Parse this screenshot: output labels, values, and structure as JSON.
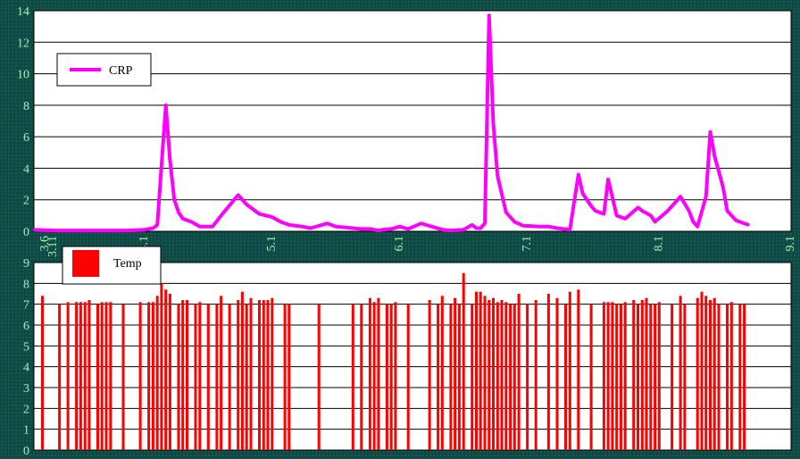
{
  "colors": {
    "background": "#0e4a43",
    "tick_text": "#a6f0b6",
    "crp_line": "#ff00ff",
    "temp_bar": "#ff0000",
    "plot_bg": "#ffffff",
    "grid": "#000000"
  },
  "chart_data": [
    {
      "type": "line",
      "title": "",
      "xlabel": "",
      "ylabel": "",
      "x_tick_labels": [
        "3.6",
        "3.11",
        "4.1",
        "5.1",
        "6.1",
        "7.1",
        "8.1",
        "9.1"
      ],
      "x_tick_days": [
        0,
        5,
        26,
        56,
        86,
        116,
        147,
        178
      ],
      "xlim": [
        0,
        178
      ],
      "ylim": [
        0,
        14
      ],
      "y_ticks": [
        0,
        2,
        4,
        6,
        8,
        10,
        12,
        14
      ],
      "grid": true,
      "legend": "top-left",
      "series": [
        {
          "name": "CRP",
          "color": "#ff00ff",
          "x": [
            0,
            5,
            10,
            16,
            22,
            26,
            28,
            29,
            30,
            31,
            32,
            33,
            34,
            35,
            37,
            39,
            40,
            42,
            44,
            48,
            50,
            53,
            56,
            58,
            60,
            63,
            65,
            69,
            71,
            75,
            77,
            79,
            80,
            81,
            82,
            84,
            86,
            88,
            91,
            96,
            98,
            101,
            103,
            104,
            105,
            106,
            107,
            108,
            109,
            111,
            113,
            115,
            119,
            121,
            122,
            123,
            126,
            128,
            129,
            131,
            132,
            134,
            135,
            137,
            139,
            142,
            143,
            145,
            146,
            149,
            152,
            154,
            155,
            156,
            158,
            159,
            160,
            162,
            163,
            165,
            167,
            168
          ],
          "values": [
            0.1,
            0.05,
            0.05,
            0.05,
            0.05,
            0.1,
            0.2,
            0.4,
            4.2,
            8.0,
            4.5,
            2.0,
            1.2,
            0.8,
            0.6,
            0.3,
            0.3,
            0.3,
            1.0,
            2.3,
            1.7,
            1.1,
            0.9,
            0.6,
            0.4,
            0.3,
            0.2,
            0.5,
            0.3,
            0.2,
            0.15,
            0.15,
            0.1,
            0.05,
            0.1,
            0.15,
            0.3,
            0.15,
            0.5,
            0.1,
            0.05,
            0.1,
            0.4,
            0.2,
            0.2,
            0.5,
            13.7,
            6.8,
            3.5,
            1.2,
            0.6,
            0.35,
            0.3,
            0.3,
            0.25,
            0.2,
            0.1,
            3.6,
            2.4,
            1.6,
            1.3,
            1.1,
            3.3,
            1.0,
            0.8,
            1.5,
            1.3,
            1.0,
            0.6,
            1.3,
            2.2,
            1.3,
            0.6,
            0.3,
            2.2,
            6.3,
            4.8,
            2.8,
            1.3,
            0.7,
            0.5,
            0.4
          ]
        }
      ]
    },
    {
      "type": "bar",
      "title": "",
      "xlabel": "",
      "ylabel": "",
      "xlim": [
        0,
        178
      ],
      "ylim": [
        0,
        9
      ],
      "y_ticks": [
        0,
        1,
        2,
        3,
        4,
        5,
        6,
        7,
        8,
        9
      ],
      "grid": true,
      "legend": "top-left",
      "series": [
        {
          "name": "Temp",
          "color": "#ff0000",
          "x": [
            2,
            6,
            8,
            10,
            11,
            12,
            13,
            15,
            16,
            17,
            18,
            21,
            25,
            27,
            28,
            29,
            30,
            31,
            32,
            34,
            35,
            36,
            38,
            39,
            41,
            43,
            44,
            46,
            48,
            49,
            50,
            51,
            53,
            54,
            55,
            56,
            59,
            60,
            67,
            75,
            77,
            79,
            80,
            81,
            83,
            84,
            85,
            88,
            93,
            95,
            96,
            98,
            99,
            100,
            101,
            103,
            104,
            105,
            106,
            107,
            108,
            109,
            110,
            111,
            112,
            113,
            114,
            116,
            118,
            121,
            123,
            125,
            126,
            128,
            131,
            134,
            135,
            136,
            137,
            138,
            139,
            141,
            142,
            143,
            144,
            145,
            146,
            147,
            150,
            152,
            153,
            156,
            157,
            158,
            159,
            160,
            161,
            163,
            164,
            166,
            167
          ],
          "values": [
            7.4,
            7.0,
            7.1,
            7.1,
            7.1,
            7.1,
            7.2,
            7.0,
            7.1,
            7.1,
            7.1,
            7.0,
            7.1,
            7.1,
            7.1,
            7.4,
            8.0,
            7.7,
            7.5,
            7.0,
            7.2,
            7.2,
            7.0,
            7.1,
            7.0,
            7.0,
            7.4,
            7.0,
            7.2,
            7.6,
            7.0,
            7.3,
            7.2,
            7.2,
            7.2,
            7.3,
            7.0,
            7.0,
            7.0,
            7.0,
            7.0,
            7.3,
            7.1,
            7.3,
            7.0,
            7.0,
            7.1,
            7.0,
            7.2,
            7.0,
            7.4,
            7.0,
            7.3,
            7.0,
            8.5,
            7.0,
            7.6,
            7.6,
            7.4,
            7.2,
            7.3,
            7.1,
            7.2,
            7.1,
            7.0,
            7.0,
            7.5,
            7.0,
            7.2,
            7.5,
            7.3,
            7.0,
            7.6,
            7.7,
            7.0,
            7.1,
            7.1,
            7.1,
            7.0,
            7.0,
            7.1,
            7.2,
            7.0,
            7.2,
            7.3,
            7.0,
            7.0,
            7.1,
            7.0,
            7.4,
            7.0,
            7.3,
            7.6,
            7.4,
            7.2,
            7.3,
            7.0,
            7.0,
            7.1,
            7.0,
            7.0
          ]
        }
      ]
    }
  ]
}
